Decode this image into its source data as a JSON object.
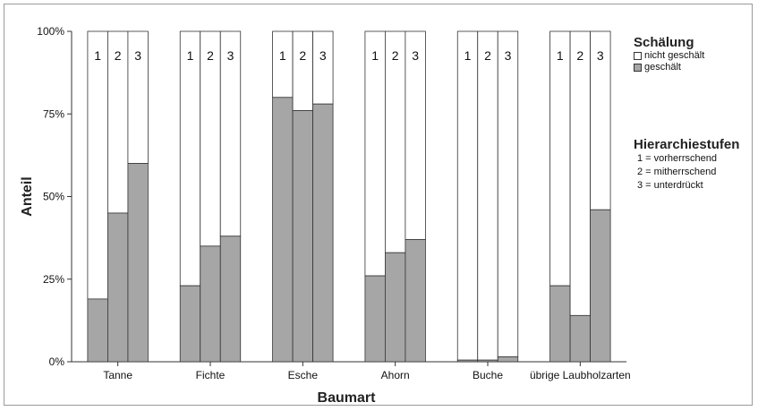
{
  "chart_data": {
    "type": "bar",
    "stacked": true,
    "percent_stacked": true,
    "categories": [
      "Tanne",
      "Fichte",
      "Esche",
      "Ahorn",
      "Buche",
      "übrige Laubholzarten"
    ],
    "bar_labels": [
      "1",
      "2",
      "3"
    ],
    "series": [
      {
        "name": "geschält",
        "color": "#a6a6a6",
        "values": [
          [
            19,
            45,
            60
          ],
          [
            23,
            35,
            38
          ],
          [
            80,
            76,
            78
          ],
          [
            26,
            33,
            37
          ],
          [
            0.5,
            0.5,
            1.5
          ],
          [
            23,
            14,
            46
          ]
        ]
      },
      {
        "name": "nicht geschält",
        "color": "#ffffff",
        "values": [
          [
            81,
            55,
            40
          ],
          [
            77,
            65,
            62
          ],
          [
            20,
            24,
            22
          ],
          [
            74,
            67,
            63
          ],
          [
            99.5,
            99.5,
            98.5
          ],
          [
            77,
            86,
            54
          ]
        ]
      }
    ],
    "title": "",
    "xlabel": "Baumart",
    "ylabel": "Anteil",
    "ylim": [
      0,
      100
    ],
    "yticks": [
      "0%",
      "25%",
      "50%",
      "75%",
      "100%"
    ],
    "grid": false,
    "legend": {
      "placement": "right",
      "title": "Schälung",
      "entries": [
        "nicht geschält",
        "geschält"
      ]
    },
    "annotation": {
      "title": "Hierarchiestufen",
      "lines": [
        "1 = vorherrschend",
        "2 = mitherrschend",
        "3 = unterdrückt"
      ]
    }
  }
}
